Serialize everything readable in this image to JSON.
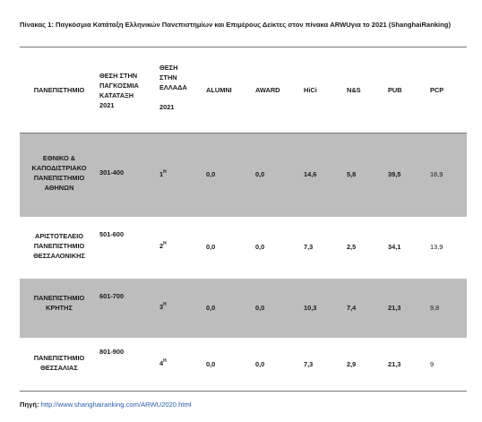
{
  "caption": "Πίνακας 1: Παγκόσμια  Κατάταξη Ελληνικών Πανεπιστημίων και Επιμέρους Δείκτες στον πίνακα ARWUγια το 2021 (ShanghaiRanking)",
  "headers": {
    "university": "ΠΑΝΕΠΙΣΤΗΜΙΟ",
    "world_rank": [
      "ΘΕΣΗ  ΣΤΗΝ",
      "ΠΑΓΚΟΣΜΙΑ",
      "ΚΑΤΑΤΑΞΗ",
      "2021"
    ],
    "greece_rank": [
      "ΘΕΣΗ",
      "ΣΤΗΝ",
      "ΕΛΛΑΔΑ",
      "",
      "2021"
    ],
    "alumni": "ALUMNI",
    "award": "AWARD",
    "hici": "HiCi",
    "ns": "N&S",
    "pub": "PUB",
    "pcp": "PCP"
  },
  "rows": [
    {
      "university": [
        "ΕΘΝΙΚΟ &",
        "ΚΑΠΟΔΙΣΤΡΙΑΚΟ",
        "ΠΑΝΕΠΙΣΤΗΜΙΟ",
        "ΑΘΗΝΩΝ"
      ],
      "world_rank": "301-400",
      "greece_rank": "1",
      "greece_rank_sup": "Η",
      "alumni": "0,0",
      "award": "0,0",
      "hici": "14,6",
      "ns": "5,8",
      "pub": "39,5",
      "pcp": "16,9"
    },
    {
      "university": [
        "ΑΡΙΣΤΟΤΕΛΕΙΟ",
        "ΠΑΝΕΠΙΣΤΗΜΙΟ",
        "ΘΕΣΣΑΛΟΝΙΚΗΣ"
      ],
      "world_rank": "501-600",
      "greece_rank": "2",
      "greece_rank_sup": "Η",
      "alumni": "0,0",
      "award": "0,0",
      "hici": "7,3",
      "ns": "2,5",
      "pub": "34,1",
      "pcp": "13,9"
    },
    {
      "university": [
        "ΠΑΝΕΠΙΣΤΗΜΙΟ",
        "ΚΡΗΤΗΣ"
      ],
      "world_rank": "601-700",
      "greece_rank": "3",
      "greece_rank_sup": "Η",
      "alumni": "0,0",
      "award": "0,0",
      "hici": "10,3",
      "ns": "7,4",
      "pub": "21,3",
      "pcp": "9,8"
    },
    {
      "university": [
        "ΠΑΝΕΠΙΣΤΗΜΙΟ",
        "ΘΕΣΣΑΛΙΑΣ"
      ],
      "world_rank": "801-900",
      "greece_rank": "4",
      "greece_rank_sup": "Η",
      "alumni": "0,0",
      "award": "0,0",
      "hici": "7,3",
      "ns": "2,9",
      "pub": "21,3",
      "pcp": "9"
    }
  ],
  "source": {
    "label": "Πηγή:",
    "link": "http://www.shanghairanking.com/ARWU2020.html"
  }
}
